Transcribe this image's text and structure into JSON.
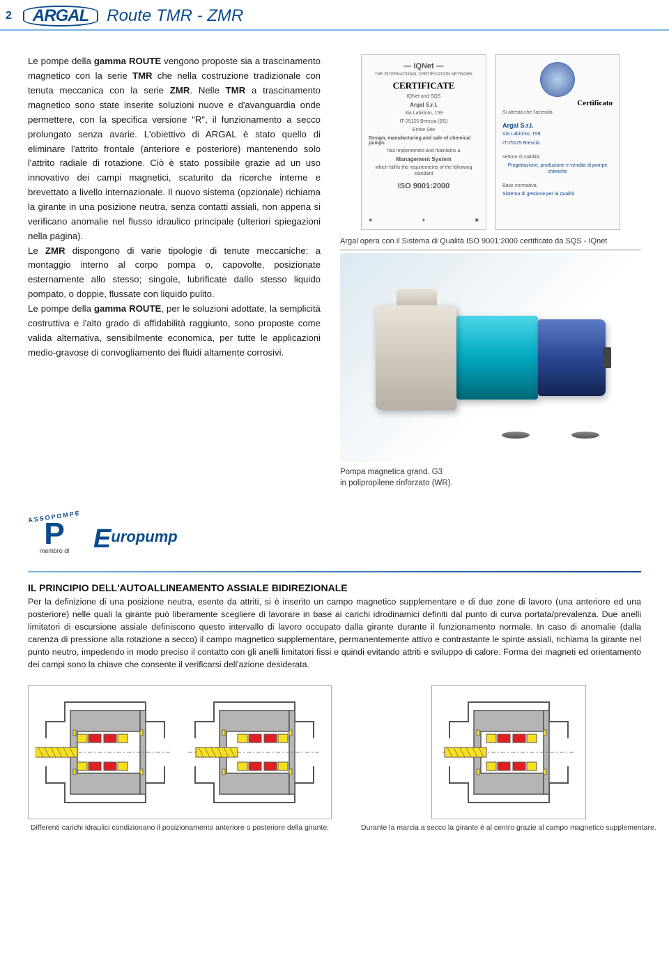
{
  "header": {
    "page_num": "2",
    "logo_text": "ARGAL",
    "title": "Route TMR - ZMR"
  },
  "main_text": {
    "p1a": "Le pompe della ",
    "p1b": "gamma ROUTE",
    "p1c": " vengono proposte sia a trascinamento magnetico con la serie ",
    "p1d": "TMR",
    "p1e": " che nella costruzione tradizionale con tenuta meccanica con la serie ",
    "p1f": "ZMR",
    "p1g": ". Nelle ",
    "p1h": "TMR",
    "p1i": " a trascinamento magnetico sono state inserite soluzioni nuove e d'avanguardia onde permettere, con la specifica versione \"R\", il funzionamento a secco prolungato senza avarie. L'obiettivo di ARGAL è stato quello di eliminare l'attrito frontale (anteriore e posteriore) mantenendo solo l'attrito radiale di rotazione. Ciò è stato possibile grazie ad un uso innovativo dei campi magnetici, scaturito da ricerche interne e brevettato a livello internazionale. Il nuovo sistema (opzionale) richiama la girante in una posizione neutra, senza contatti assiali, non appena si verificano anomalie nel flusso idraulico principale (ulteriori spiegazioni nella pagina).",
    "p2a": "Le ",
    "p2b": "ZMR",
    "p2c": " dispongono di varie tipologie di tenute meccaniche: a montaggio interno al corpo pompa o, capovolte, posizionate esternamente allo stesso; singole, lubrificate dallo stesso liquido pompato, o doppie, flussate con liquido pulito.",
    "p3a": "Le pompe della ",
    "p3b": "gamma ROUTE",
    "p3c": ", per le soluzioni adottate, la semplicità costruttiva e l'alto grado di affidabilità raggiunto, sono proposte come valida alternativa, sensibilmente economica, per tutte le applicazioni medio-gravose di convogliamento dei fluidi altamente corrosivi."
  },
  "cert1": {
    "net": "IQNet",
    "head": "CERTIFICATE",
    "sub1": "IQNet and SQS",
    "company": "Argal S.r.l.",
    "addr1": "Via Labirinto, 159",
    "addr2": "IT-25125 Brescia (BS)",
    "sites": "Entire Site",
    "scope": "Design, manufacturing and sale of chemical pumps",
    "ms1": "has implemented and maintains a",
    "ms2": "Management System",
    "ms3": "which fulfils the requirements of the following standard",
    "iso": "ISO 9001:2000"
  },
  "cert2": {
    "head": "Certificato",
    "line1": "Si attesta che l'azienda",
    "company": "Argal S.r.l.",
    "addr1": "Via Labirinto, 159",
    "addr2": "IT-25125 Brescia",
    "scope_label": "settore di validità:",
    "scope": "Progettazione, produzione e vendita di pompe chimiche",
    "base": "Base normativa:",
    "iso": "Sistema di gestione per la qualità"
  },
  "cert_caption": "Argal opera con il Sistema di Qualità ISO 9001:2000 certificato da SQS - IQnet",
  "pump_caption_1": "Pompa magnetica grand. G3",
  "pump_caption_2": "in polipropilene rinforzato (WR).",
  "logos": {
    "assopompe": "ASSOPOMPE",
    "membro": "membro di",
    "europump": "uropump"
  },
  "lower": {
    "heading": "IL PRINCIPIO DELL'AUTOALLINEAMENTO ASSIALE BIDIREZIONALE",
    "text": "Per la definizione di una posizione neutra, esente da attriti, si è inserito un campo magnetico supplementare e di due zone di lavoro (una anteriore ed una posteriore) nelle quali la girante può liberamente scegliere di lavorare in base ai carichi idrodinamici definiti dal punto di curva portata/prevalenza. Due anelli limitatori di escursione assiale definiscono questo intervallo di lavoro occupato dalla girante durante il funzionamento normale. In caso di anomalie (dalla carenza di pressione alla rotazione a secco) il campo magnetico supplementare, permanentemente attivo e contrastante le spinte assiali, richiama la girante nel punto neutro, impedendo in modo preciso il contatto con gli anelli limitatori fissi e quindi evitando attriti e sviluppo di calore. Forma dei magneti ed orientamento dei campi sono la chiave che consente il verificarsi dell'azione desiderata."
  },
  "diagrams": {
    "colors": {
      "housing_stroke": "#555555",
      "housing_fill": "#e8e8e8",
      "shell_fill": "#b5b5b5",
      "magnet_red": "#e02020",
      "magnet_yellow": "#f8e020",
      "shaft_yellow": "#f8e020"
    },
    "caption_left": "Differenti carichi idraulici condizionano il posizionamento anteriore o posteriore della girante.",
    "caption_right": "Durante la marcia a secco la girante è al centro grazie al campo magnetico supplementare."
  }
}
